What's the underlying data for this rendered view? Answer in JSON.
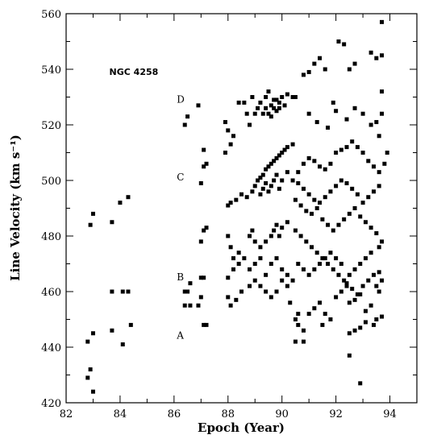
{
  "chart_data": {
    "type": "scatter",
    "title": "",
    "xlabel": "Epoch (Year)",
    "ylabel": "Line Velocity (km s⁻¹)",
    "xlim": [
      82,
      95
    ],
    "ylim": [
      420,
      560
    ],
    "xticks": [
      82,
      84,
      86,
      88,
      90,
      92,
      94
    ],
    "yticks": [
      420,
      440,
      460,
      480,
      500,
      520,
      540,
      560
    ],
    "annotations": [
      {
        "text": "NGC 4258",
        "x": 83.6,
        "y": 538
      },
      {
        "text": "D",
        "x": 86.1,
        "y": 528
      },
      {
        "text": "C",
        "x": 86.1,
        "y": 500
      },
      {
        "text": "B",
        "x": 86.1,
        "y": 464
      },
      {
        "text": "A",
        "x": 86.1,
        "y": 443
      }
    ],
    "series": [
      {
        "points": [
          [
            82.9,
            484
          ],
          [
            83.0,
            488
          ],
          [
            83.7,
            485
          ],
          [
            84.0,
            492
          ],
          [
            84.3,
            494
          ],
          [
            82.8,
            442
          ],
          [
            83.0,
            445
          ],
          [
            83.7,
            446
          ],
          [
            84.1,
            441
          ],
          [
            84.4,
            448
          ],
          [
            82.8,
            429
          ],
          [
            82.9,
            432
          ],
          [
            83.0,
            424
          ],
          [
            83.7,
            460
          ],
          [
            84.1,
            460
          ],
          [
            84.3,
            460
          ],
          [
            86.4,
            520
          ],
          [
            86.5,
            523
          ],
          [
            86.9,
            527
          ],
          [
            86.4,
            460
          ],
          [
            86.5,
            460
          ],
          [
            86.6,
            463
          ],
          [
            86.4,
            455
          ],
          [
            86.6,
            455
          ],
          [
            86.9,
            455
          ],
          [
            87.0,
            458
          ],
          [
            87.1,
            448
          ],
          [
            87.2,
            448
          ],
          [
            87.0,
            465
          ],
          [
            87.1,
            465
          ],
          [
            87.1,
            511
          ],
          [
            87.2,
            506
          ],
          [
            87.1,
            505
          ],
          [
            87.0,
            499
          ],
          [
            87.1,
            482
          ],
          [
            87.2,
            483
          ],
          [
            87.0,
            478
          ],
          [
            87.9,
            521
          ],
          [
            88.0,
            518
          ],
          [
            88.1,
            513
          ],
          [
            87.9,
            510
          ],
          [
            88.2,
            516
          ],
          [
            88.4,
            528
          ],
          [
            88.6,
            528
          ],
          [
            88.7,
            524
          ],
          [
            88.8,
            520
          ],
          [
            88.9,
            530
          ],
          [
            89.0,
            524
          ],
          [
            89.1,
            526
          ],
          [
            89.2,
            528
          ],
          [
            89.3,
            524
          ],
          [
            89.4,
            530
          ],
          [
            89.5,
            532
          ],
          [
            89.6,
            527
          ],
          [
            89.7,
            526
          ],
          [
            89.8,
            529
          ],
          [
            89.9,
            528
          ],
          [
            90.0,
            530
          ],
          [
            90.1,
            527
          ],
          [
            90.2,
            531
          ],
          [
            90.4,
            530
          ],
          [
            89.4,
            526
          ],
          [
            89.5,
            524
          ],
          [
            89.6,
            523
          ],
          [
            89.7,
            529
          ],
          [
            89.8,
            525
          ],
          [
            89.9,
            526
          ],
          [
            88.0,
            491
          ],
          [
            88.1,
            492
          ],
          [
            88.3,
            493
          ],
          [
            88.5,
            495
          ],
          [
            88.7,
            494
          ],
          [
            88.9,
            496
          ],
          [
            89.0,
            498
          ],
          [
            89.1,
            500
          ],
          [
            89.2,
            501
          ],
          [
            89.3,
            502
          ],
          [
            89.4,
            504
          ],
          [
            89.5,
            505
          ],
          [
            89.6,
            506
          ],
          [
            89.7,
            507
          ],
          [
            89.8,
            508
          ],
          [
            89.9,
            509
          ],
          [
            90.0,
            510
          ],
          [
            90.1,
            511
          ],
          [
            90.2,
            512
          ],
          [
            90.4,
            513
          ],
          [
            89.2,
            495
          ],
          [
            89.3,
            497
          ],
          [
            89.4,
            499
          ],
          [
            89.5,
            496
          ],
          [
            89.6,
            498
          ],
          [
            89.7,
            500
          ],
          [
            89.8,
            502
          ],
          [
            89.9,
            497
          ],
          [
            90.0,
            500
          ],
          [
            90.2,
            503
          ],
          [
            88.0,
            480
          ],
          [
            88.1,
            476
          ],
          [
            88.2,
            472
          ],
          [
            88.4,
            474
          ],
          [
            88.8,
            480
          ],
          [
            88.9,
            482
          ],
          [
            89.0,
            478
          ],
          [
            89.2,
            476
          ],
          [
            89.4,
            478
          ],
          [
            89.6,
            480
          ],
          [
            89.7,
            482
          ],
          [
            89.8,
            484
          ],
          [
            89.9,
            480
          ],
          [
            90.0,
            483
          ],
          [
            90.2,
            485
          ],
          [
            88.0,
            465
          ],
          [
            88.2,
            468
          ],
          [
            88.4,
            470
          ],
          [
            88.6,
            472
          ],
          [
            88.8,
            468
          ],
          [
            89.0,
            470
          ],
          [
            89.2,
            472
          ],
          [
            89.4,
            466
          ],
          [
            89.6,
            470
          ],
          [
            89.8,
            472
          ],
          [
            90.0,
            468
          ],
          [
            90.2,
            466
          ],
          [
            90.4,
            464
          ],
          [
            88.0,
            458
          ],
          [
            88.1,
            455
          ],
          [
            88.3,
            457
          ],
          [
            88.5,
            460
          ],
          [
            88.8,
            462
          ],
          [
            89.0,
            464
          ],
          [
            89.2,
            462
          ],
          [
            89.4,
            460
          ],
          [
            89.6,
            458
          ],
          [
            89.8,
            460
          ],
          [
            90.0,
            464
          ],
          [
            90.2,
            462
          ],
          [
            90.3,
            456
          ],
          [
            90.5,
            530
          ],
          [
            90.8,
            538
          ],
          [
            91.0,
            539
          ],
          [
            91.2,
            542
          ],
          [
            91.4,
            544
          ],
          [
            91.6,
            540
          ],
          [
            91.9,
            528
          ],
          [
            92.1,
            550
          ],
          [
            92.3,
            549
          ],
          [
            92.5,
            540
          ],
          [
            92.7,
            542
          ],
          [
            93.3,
            546
          ],
          [
            93.5,
            544
          ],
          [
            93.7,
            557
          ],
          [
            93.7,
            545
          ],
          [
            93.7,
            532
          ],
          [
            93.7,
            524
          ],
          [
            93.5,
            521
          ],
          [
            93.6,
            516
          ],
          [
            93.3,
            520
          ],
          [
            93.0,
            524
          ],
          [
            92.7,
            526
          ],
          [
            92.4,
            522
          ],
          [
            92.0,
            525
          ],
          [
            91.7,
            519
          ],
          [
            91.3,
            521
          ],
          [
            91.0,
            524
          ],
          [
            93.9,
            510
          ],
          [
            93.8,
            506
          ],
          [
            93.6,
            503
          ],
          [
            93.4,
            505
          ],
          [
            93.2,
            507
          ],
          [
            93.0,
            510
          ],
          [
            92.8,
            512
          ],
          [
            92.6,
            514
          ],
          [
            92.4,
            512
          ],
          [
            92.2,
            511
          ],
          [
            92.0,
            510
          ],
          [
            91.8,
            506
          ],
          [
            91.6,
            504
          ],
          [
            91.4,
            505
          ],
          [
            91.2,
            507
          ],
          [
            91.0,
            508
          ],
          [
            90.8,
            506
          ],
          [
            90.6,
            503
          ],
          [
            93.6,
            498
          ],
          [
            93.4,
            496
          ],
          [
            93.2,
            494
          ],
          [
            93.0,
            492
          ],
          [
            92.8,
            495
          ],
          [
            92.6,
            497
          ],
          [
            92.4,
            499
          ],
          [
            92.2,
            500
          ],
          [
            92.0,
            498
          ],
          [
            91.8,
            496
          ],
          [
            91.6,
            494
          ],
          [
            91.4,
            492
          ],
          [
            91.2,
            493
          ],
          [
            91.0,
            495
          ],
          [
            90.8,
            497
          ],
          [
            90.6,
            499
          ],
          [
            90.4,
            500
          ],
          [
            90.5,
            493
          ],
          [
            90.7,
            491
          ],
          [
            90.9,
            489
          ],
          [
            91.1,
            488
          ],
          [
            91.3,
            490
          ],
          [
            91.5,
            486
          ],
          [
            91.7,
            484
          ],
          [
            91.9,
            482
          ],
          [
            92.1,
            484
          ],
          [
            92.3,
            486
          ],
          [
            92.5,
            488
          ],
          [
            92.7,
            490
          ],
          [
            92.9,
            487
          ],
          [
            93.1,
            485
          ],
          [
            93.3,
            483
          ],
          [
            93.5,
            481
          ],
          [
            93.7,
            478
          ],
          [
            93.6,
            476
          ],
          [
            90.5,
            482
          ],
          [
            90.7,
            480
          ],
          [
            90.9,
            478
          ],
          [
            91.1,
            476
          ],
          [
            91.3,
            474
          ],
          [
            91.5,
            472
          ],
          [
            91.7,
            470
          ],
          [
            91.9,
            468
          ],
          [
            92.1,
            466
          ],
          [
            92.3,
            464
          ],
          [
            92.5,
            466
          ],
          [
            92.7,
            468
          ],
          [
            92.9,
            470
          ],
          [
            93.1,
            472
          ],
          [
            93.3,
            474
          ],
          [
            90.6,
            470
          ],
          [
            90.8,
            468
          ],
          [
            91.0,
            466
          ],
          [
            91.2,
            468
          ],
          [
            91.4,
            470
          ],
          [
            91.6,
            472
          ],
          [
            91.8,
            474
          ],
          [
            92.0,
            472
          ],
          [
            92.2,
            470
          ],
          [
            92.4,
            463
          ],
          [
            92.6,
            461
          ],
          [
            92.8,
            459
          ],
          [
            93.0,
            462
          ],
          [
            93.2,
            464
          ],
          [
            93.4,
            466
          ],
          [
            93.6,
            467
          ],
          [
            93.7,
            464
          ],
          [
            93.5,
            462
          ],
          [
            93.6,
            460
          ],
          [
            90.6,
            452
          ],
          [
            90.5,
            450
          ],
          [
            90.6,
            448
          ],
          [
            90.8,
            446
          ],
          [
            91.0,
            452
          ],
          [
            91.2,
            454
          ],
          [
            91.4,
            456
          ],
          [
            91.6,
            452
          ],
          [
            91.8,
            450
          ],
          [
            92.0,
            458
          ],
          [
            92.2,
            460
          ],
          [
            92.4,
            462
          ],
          [
            92.5,
            456
          ],
          [
            92.7,
            457
          ],
          [
            92.9,
            459
          ],
          [
            93.1,
            453
          ],
          [
            93.3,
            455
          ],
          [
            93.5,
            450
          ],
          [
            93.7,
            451
          ],
          [
            93.4,
            448
          ],
          [
            92.5,
            445
          ],
          [
            92.7,
            446
          ],
          [
            92.9,
            447
          ],
          [
            93.1,
            449
          ],
          [
            90.5,
            442
          ],
          [
            90.8,
            442
          ],
          [
            91.5,
            448
          ],
          [
            92.5,
            437
          ],
          [
            92.9,
            427
          ]
        ]
      }
    ]
  }
}
